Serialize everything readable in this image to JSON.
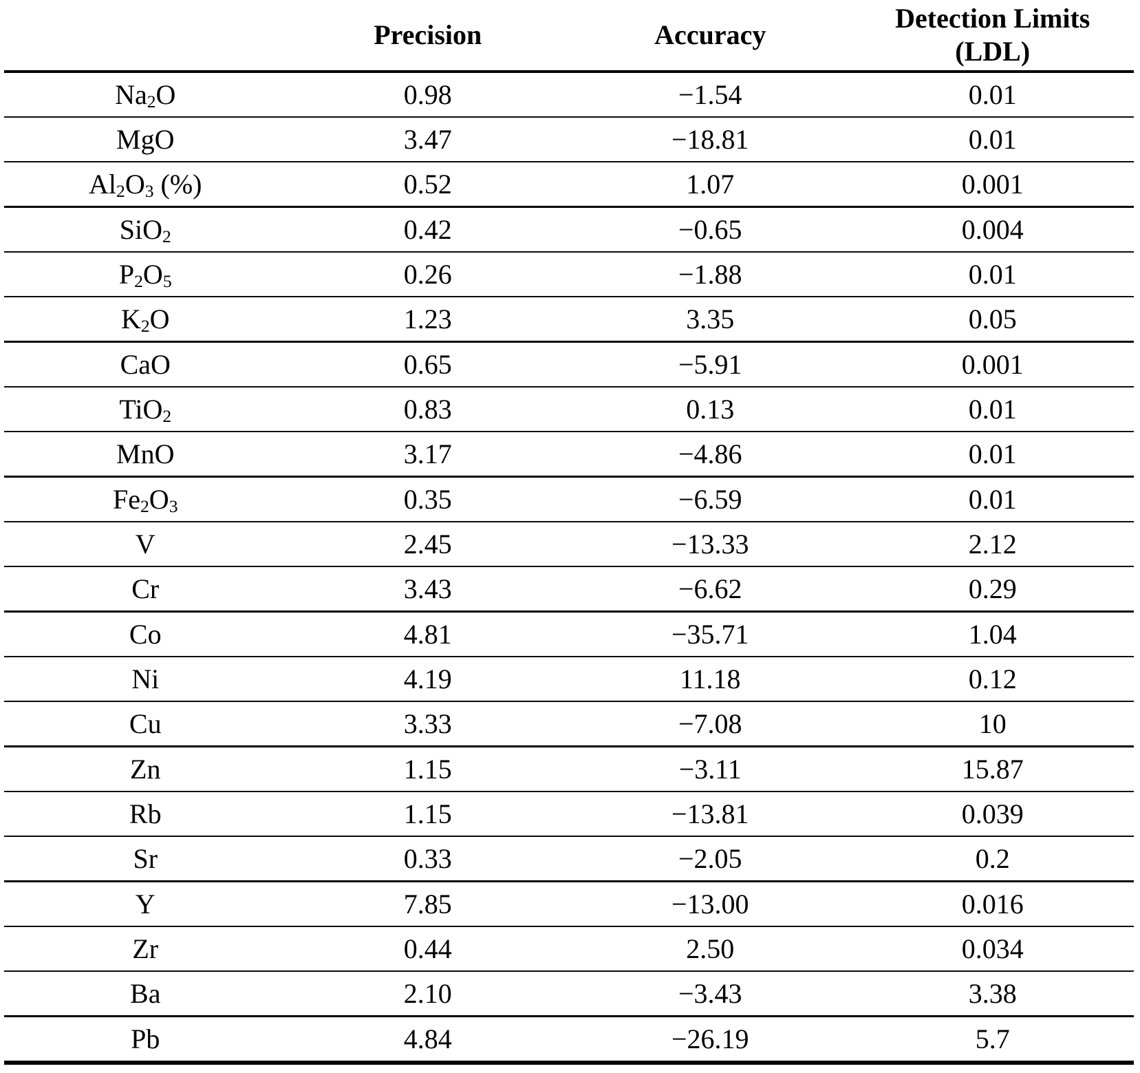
{
  "header": {
    "compound": "",
    "precision": "Precision",
    "accuracy": "Accuracy",
    "detection_line1": "Detection Limits",
    "detection_line2": "(LDL)"
  },
  "table": {
    "rows": [
      {
        "compound": "Na_{2}O",
        "precision": "0.98",
        "accuracy": "−1.54",
        "ldl": "0.01"
      },
      {
        "compound": "MgO",
        "precision": "3.47",
        "accuracy": "−18.81",
        "ldl": "0.01"
      },
      {
        "compound": "Al_{2}O_{3} (%)",
        "precision": "0.52",
        "accuracy": "1.07",
        "ldl": "0.001"
      },
      {
        "compound": "SiO_{2}",
        "precision": "0.42",
        "accuracy": "−0.65",
        "ldl": "0.004"
      },
      {
        "compound": "P_{2}O_{5}",
        "precision": "0.26",
        "accuracy": "−1.88",
        "ldl": "0.01"
      },
      {
        "compound": "K_{2}O",
        "precision": "1.23",
        "accuracy": "3.35",
        "ldl": "0.05"
      },
      {
        "compound": "CaO",
        "precision": "0.65",
        "accuracy": "−5.91",
        "ldl": "0.001"
      },
      {
        "compound": "TiO_{2}",
        "precision": "0.83",
        "accuracy": "0.13",
        "ldl": "0.01"
      },
      {
        "compound": "MnO",
        "precision": "3.17",
        "accuracy": "−4.86",
        "ldl": "0.01"
      },
      {
        "compound": "Fe_{2}O_{3}",
        "precision": "0.35",
        "accuracy": "−6.59",
        "ldl": "0.01"
      },
      {
        "compound": "V",
        "precision": "2.45",
        "accuracy": "−13.33",
        "ldl": "2.12"
      },
      {
        "compound": "Cr",
        "precision": "3.43",
        "accuracy": "−6.62",
        "ldl": "0.29"
      },
      {
        "compound": "Co",
        "precision": "4.81",
        "accuracy": "−35.71",
        "ldl": "1.04"
      },
      {
        "compound": "Ni",
        "precision": "4.19",
        "accuracy": "11.18",
        "ldl": "0.12"
      },
      {
        "compound": "Cu",
        "precision": "3.33",
        "accuracy": "−7.08",
        "ldl": "10"
      },
      {
        "compound": "Zn",
        "precision": "1.15",
        "accuracy": "−3.11",
        "ldl": "15.87"
      },
      {
        "compound": "Rb",
        "precision": "1.15",
        "accuracy": "−13.81",
        "ldl": "0.039"
      },
      {
        "compound": "Sr",
        "precision": "0.33",
        "accuracy": "−2.05",
        "ldl": "0.2"
      },
      {
        "compound": "Y",
        "precision": "7.85",
        "accuracy": "−13.00",
        "ldl": "0.016"
      },
      {
        "compound": "Zr",
        "precision": "0.44",
        "accuracy": "2.50",
        "ldl": "0.034"
      },
      {
        "compound": "Ba",
        "precision": "2.10",
        "accuracy": "−3.43",
        "ldl": "3.38"
      },
      {
        "compound": "Pb",
        "precision": "4.84",
        "accuracy": "−26.19",
        "ldl": "5.7"
      }
    ]
  },
  "colors": {
    "text": "#000000",
    "rule": "#000000",
    "background": "#ffffff"
  }
}
